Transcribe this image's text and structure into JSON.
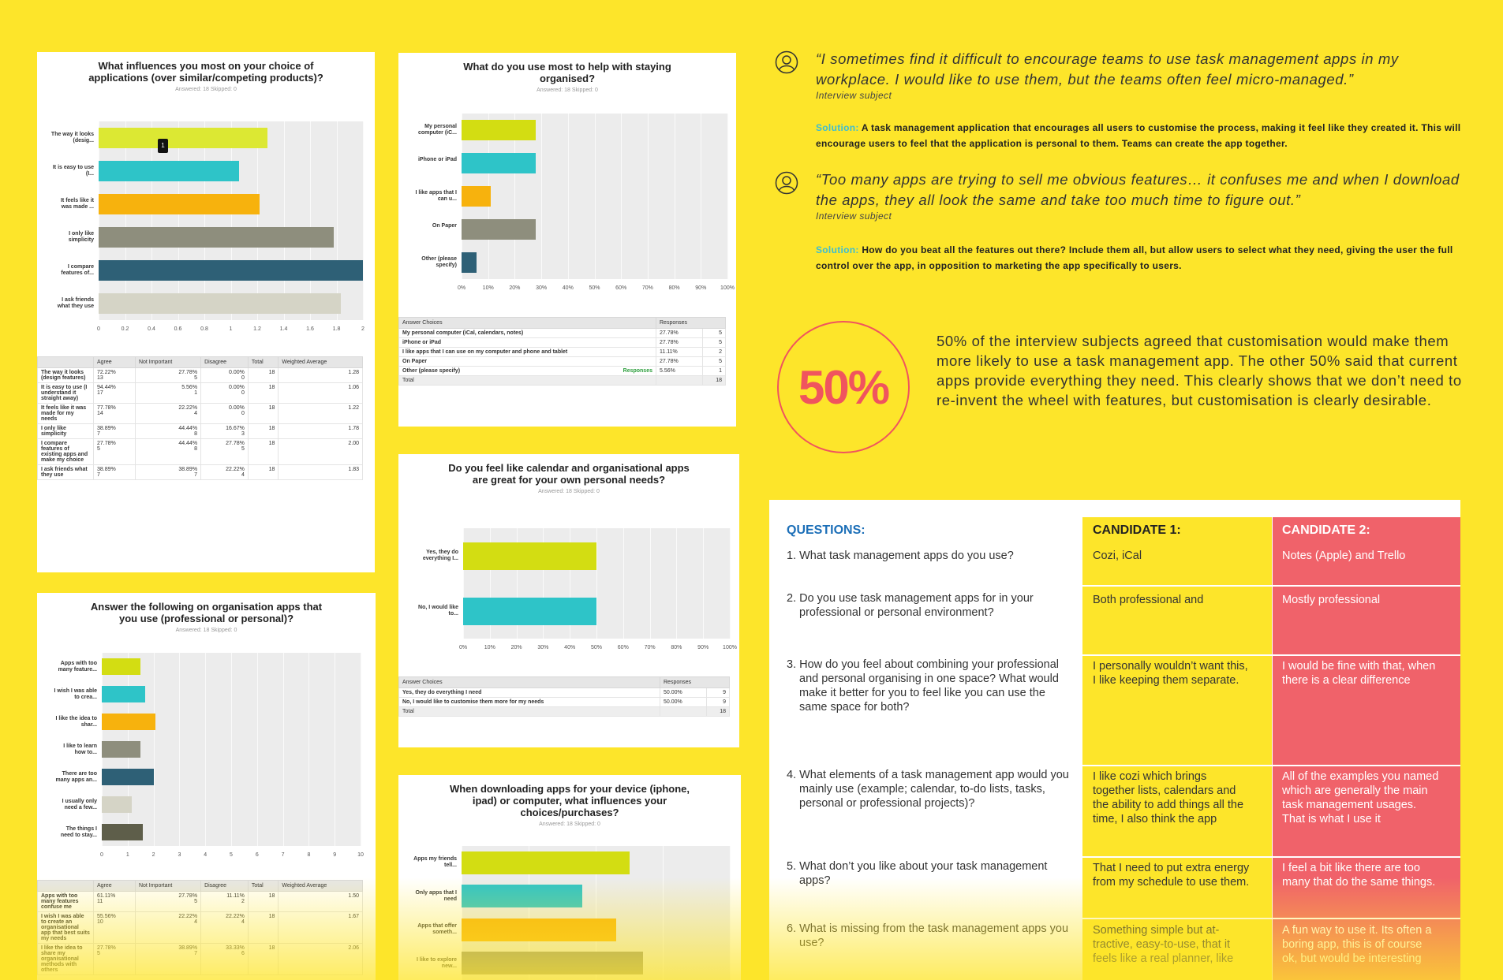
{
  "colors": {
    "background": "#fde52a",
    "accent_red": "#f0545e",
    "solution_label": "#3dbdd2",
    "candidate2_bg": "#f0626a"
  },
  "survey1": {
    "title": "What influences you most on your choice of applications (over similar/competing products)?",
    "meta": "Answered: 18    Skipped: 0",
    "bar_labels": [
      "The way it looks (desig...",
      "It is easy to use (I...",
      "It feels like it was made ...",
      "I only like simplicity",
      "I compare features of...",
      "I ask friends what they use"
    ],
    "tooltip": "1",
    "table_headers": [
      "",
      "Agree",
      "Not Important",
      "Disagree",
      "Total",
      "Weighted Average"
    ],
    "rows": [
      {
        "label": "The way it looks (design features)",
        "agree": "72.22%",
        "agree_n": "13",
        "ni": "27.78%",
        "ni_n": "5",
        "dis": "0.00%",
        "dis_n": "0",
        "total": "18",
        "avg": "1.28"
      },
      {
        "label": "It is easy to use (I understand it straight away)",
        "agree": "94.44%",
        "agree_n": "17",
        "ni": "5.56%",
        "ni_n": "1",
        "dis": "0.00%",
        "dis_n": "0",
        "total": "18",
        "avg": "1.06"
      },
      {
        "label": "It feels like it was made for my needs",
        "agree": "77.78%",
        "agree_n": "14",
        "ni": "22.22%",
        "ni_n": "4",
        "dis": "0.00%",
        "dis_n": "0",
        "total": "18",
        "avg": "1.22"
      },
      {
        "label": "I only like simplicity",
        "agree": "38.89%",
        "agree_n": "7",
        "ni": "44.44%",
        "ni_n": "8",
        "dis": "16.67%",
        "dis_n": "3",
        "total": "18",
        "avg": "1.78"
      },
      {
        "label": "I compare features of existing apps and make my choice",
        "agree": "27.78%",
        "agree_n": "5",
        "ni": "44.44%",
        "ni_n": "8",
        "dis": "27.78%",
        "dis_n": "5",
        "total": "18",
        "avg": "2.00"
      },
      {
        "label": "I ask friends what they use",
        "agree": "38.89%",
        "agree_n": "7",
        "ni": "38.89%",
        "ni_n": "7",
        "dis": "22.22%",
        "dis_n": "4",
        "total": "18",
        "avg": "1.83"
      }
    ]
  },
  "survey2": {
    "title": "What do you use most to help with staying organised?",
    "meta": "Answered: 18    Skipped: 0",
    "bar_labels": [
      "My personal computer (iC...",
      "iPhone or iPad",
      "I like apps that I can u...",
      "On Paper",
      "Other (please specify)"
    ],
    "table_headers": [
      "Answer Choices",
      "Responses"
    ],
    "rows": [
      {
        "label": "My personal computer (iCal, calendars, notes)",
        "pct": "27.78%",
        "n": "5"
      },
      {
        "label": "iPhone or iPad",
        "pct": "27.78%",
        "n": "5"
      },
      {
        "label": "I like apps that I can use on my computer and phone and tablet",
        "pct": "11.11%",
        "n": "2"
      },
      {
        "label": "On Paper",
        "pct": "27.78%",
        "n": "5"
      },
      {
        "label": "Other (please specify)",
        "pct": "5.56%",
        "n": "1",
        "link": "Responses"
      }
    ],
    "total_label": "Total",
    "total": "18"
  },
  "survey3": {
    "title": "Do you feel like calendar and organisational apps are great for your own personal needs?",
    "meta": "Answered: 18    Skipped: 0",
    "bar_labels": [
      "Yes, they do everything I...",
      "No, I would like to..."
    ],
    "table_headers": [
      "Answer Choices",
      "Responses"
    ],
    "rows": [
      {
        "label": "Yes, they do everything I need",
        "pct": "50.00%",
        "n": "9"
      },
      {
        "label": "No, I would like to customise them more for my needs",
        "pct": "50.00%",
        "n": "9"
      }
    ],
    "total_label": "Total",
    "total": "18"
  },
  "survey4": {
    "title": "Answer the following on organisation apps that you use (professional or personal)?",
    "meta": "Answered: 18    Skipped: 0",
    "bar_labels": [
      "Apps with too many feature...",
      "I wish I was able to crea...",
      "I like the idea to shar...",
      "I like to learn how to...",
      "There are too many apps an...",
      "I usually only need a few...",
      "The things I need to stay..."
    ],
    "table_headers": [
      "",
      "Agree",
      "Not Important",
      "Disagree",
      "Total",
      "Weighted Average"
    ],
    "rows": [
      {
        "label": "Apps with too many features confuse me",
        "agree": "61.11%",
        "agree_n": "11",
        "ni": "27.78%",
        "ni_n": "5",
        "dis": "11.11%",
        "dis_n": "2",
        "total": "18",
        "avg": "1.50"
      },
      {
        "label": "I wish I was able to create an organisational app that best suits my needs",
        "agree": "55.56%",
        "agree_n": "10",
        "ni": "22.22%",
        "ni_n": "4",
        "dis": "22.22%",
        "dis_n": "4",
        "total": "18",
        "avg": "1.67"
      },
      {
        "label": "I like the idea to share my organisational methods with others",
        "agree": "27.78%",
        "agree_n": "5",
        "ni": "38.89%",
        "ni_n": "7",
        "dis": "33.33%",
        "dis_n": "6",
        "total": "18",
        "avg": "2.06"
      }
    ]
  },
  "survey5": {
    "title": "When downloading apps for your device (iphone, ipad) or computer, what influences your choices/purchases?",
    "meta": "Answered: 18    Skipped: 0",
    "bar_labels": [
      "Apps my friends tell...",
      "Only apps that I need",
      "Apps that offer someth...",
      "I like to explore new..."
    ]
  },
  "chart_data": [
    {
      "type": "bar",
      "orientation": "horizontal",
      "title": "What influences you most on your choice of applications (over similar/competing products)?",
      "categories": [
        "The way it looks (desig...",
        "It is easy to use (I...",
        "It feels like it was made ...",
        "I only like simplicity",
        "I compare features of...",
        "I ask friends what they use"
      ],
      "values": [
        1.28,
        1.06,
        1.22,
        1.78,
        2.0,
        1.83
      ],
      "xlim": [
        0,
        2
      ],
      "ticks": [
        "0",
        "0.2",
        "0.4",
        "0.6",
        "0.8",
        "1",
        "1.2",
        "1.4",
        "1.6",
        "1.8",
        "2"
      ],
      "colors": [
        "#dce833",
        "#2ec4c8",
        "#f7b20d",
        "#8e8e7d",
        "#2e6076",
        "#d5d4c6"
      ]
    },
    {
      "type": "bar",
      "orientation": "horizontal",
      "title": "What do you use most to help with staying organised?",
      "categories": [
        "My personal computer (iC...",
        "iPhone or iPad",
        "I like apps that I can u...",
        "On Paper",
        "Other (please specify)"
      ],
      "values": [
        27.78,
        27.78,
        11.11,
        27.78,
        5.56
      ],
      "xlim": [
        0,
        100
      ],
      "ticks": [
        "0%",
        "10%",
        "20%",
        "30%",
        "40%",
        "50%",
        "60%",
        "70%",
        "80%",
        "90%",
        "100%"
      ],
      "colors": [
        "#d3dd12",
        "#2ec4c8",
        "#f7b20d",
        "#8e8e7d",
        "#2e6076"
      ]
    },
    {
      "type": "bar",
      "orientation": "horizontal",
      "title": "Do you feel like calendar and organisational apps are great for your own personal needs?",
      "categories": [
        "Yes, they do everything I...",
        "No, I would like to..."
      ],
      "values": [
        50,
        50
      ],
      "xlim": [
        0,
        100
      ],
      "ticks": [
        "0%",
        "10%",
        "20%",
        "30%",
        "40%",
        "50%",
        "60%",
        "70%",
        "80%",
        "90%",
        "100%"
      ],
      "colors": [
        "#d3dd12",
        "#2ec4c8"
      ]
    },
    {
      "type": "bar",
      "orientation": "horizontal",
      "title": "Answer the following on organisation apps that you use (professional or personal)?",
      "categories": [
        "Apps with too many feature...",
        "I wish I was able to crea...",
        "I like the idea to shar...",
        "I like to learn how to...",
        "There are too many apps an...",
        "I usually only need a few...",
        "The things I need to stay..."
      ],
      "values": [
        1.5,
        1.67,
        2.06,
        1.5,
        2.0,
        1.17,
        1.6
      ],
      "xlim": [
        0,
        10
      ],
      "ticks": [
        "0",
        "1",
        "2",
        "3",
        "4",
        "5",
        "6",
        "7",
        "8",
        "9",
        "10"
      ],
      "colors": [
        "#d3dd12",
        "#2ec4c8",
        "#f7b20d",
        "#8e8e7d",
        "#2e6076",
        "#d5d4c6",
        "#5e5e4a"
      ]
    },
    {
      "type": "bar",
      "orientation": "horizontal",
      "title": "When downloading apps for your device (iphone, ipad) or computer, what influences your choices/purchases?",
      "categories": [
        "Apps my friends tell...",
        "Only apps that I need",
        "Apps that offer someth...",
        "I like to explore new..."
      ],
      "values": [
        2.5,
        1.8,
        2.3,
        2.7
      ],
      "xlim": [
        0,
        4
      ],
      "colors": [
        "#d3dd12",
        "#2ec4c8",
        "#f7b20d",
        "#8e8e7d"
      ]
    }
  ],
  "quotes": [
    {
      "text": "“I sometimes find it difficult to encourage teams to use task management apps in my workplace. I would like to use them, but the teams often feel micro-managed.”",
      "attr": "Interview subject",
      "solution_label": "Solution:",
      "solution": "A task management application that encourages all users to customise the process, making it feel like they created it. This will encourage users to feel that the application is personal to them. Teams can create the app together."
    },
    {
      "text": "“Too many apps are trying to sell me obvious features… it confuses me and when I download the apps, they all look the same and take too much time to figure out.”",
      "attr": "Interview subject",
      "solution_label": "Solution:",
      "solution": "How do you beat all the features out there? Include them all, but allow users to select what they need, giving the user the full control over the app, in opposition to marketing the app specifically to users."
    }
  ],
  "stat": {
    "value": "50%",
    "text": "50% of the interview subjects agreed that customisation would make them more likely to use a task management app. The other 50% said that current apps provide everything they need. This clearly shows that we don’t need to re-invent the wheel with features, but customisation is clearly desirable."
  },
  "interview": {
    "questions_header": "QUESTIONS:",
    "cand1_header": "CANDIDATE 1:",
    "cand2_header": "CANDIDATE 2:",
    "rows": [
      {
        "q": "1. What task management apps do you use?",
        "a": "Cozi, iCal",
        "b": "Notes (Apple) and Trello"
      },
      {
        "q": "2. Do you use task management apps for in your professional or personal environment?",
        "a": "Both professional and",
        "b": "Mostly professional"
      },
      {
        "q": "3. How do you feel about combining your professional and personal organising in one space? What would make it better for you to feel like you can use the same space for both?",
        "a": "I personally wouldn’t want this, I like keeping them separate.",
        "b": "I would be fine with that, when there is a clear difference"
      },
      {
        "q": "4. What elements of a task management app would you mainly use (example; calendar, to-do lists, tasks, personal or professional projects)?",
        "a": "I like cozi which brings together lists, calendars and the ability to add things all the time, I also think the app",
        "b": "All of the examples you named which are generally the main task management usages. That is what I use it"
      },
      {
        "q": "5. What don’t you like about your task management apps?",
        "a": "That I need to put extra energy from my schedule to use them.",
        "b": "I feel a bit like there are too many that do the same things."
      },
      {
        "q": "6. What is missing from the task management apps you use?",
        "a": "Something simple but at-tractive, easy-to-use, that it feels like a real planner, like",
        "b": "A fun way to use it. Its often a boring app, this is of course ok, but would be interesting"
      }
    ]
  }
}
